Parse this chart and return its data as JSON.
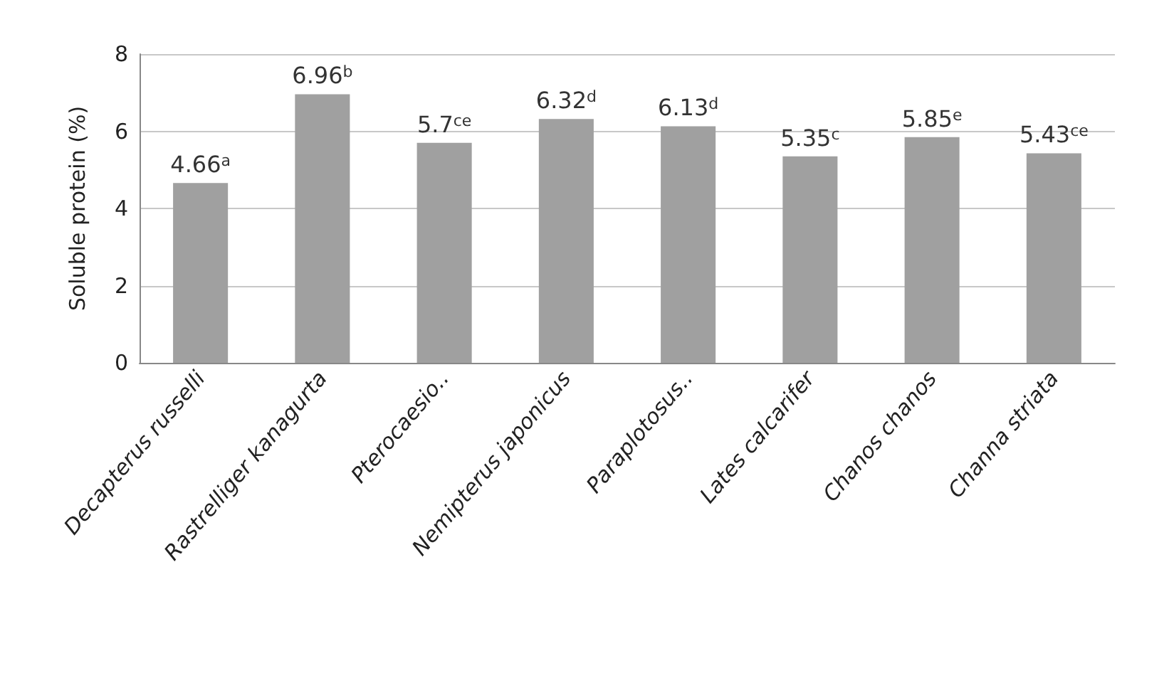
{
  "chart_data": {
    "type": "bar",
    "ylabel": "Soluble protein (%)",
    "categories": [
      "Decapterus russelli",
      "Rastrelliger kanagurta",
      "Pterocaesio..",
      "Nemipterus japonicus",
      "Paraplotosus..",
      "Lates calcarifer",
      "Chanos chanos",
      "Channa striata"
    ],
    "values": [
      4.66,
      6.96,
      5.7,
      6.32,
      6.13,
      5.35,
      5.85,
      5.43
    ],
    "value_labels": [
      "4.66$^{a}$",
      "6.96$^{b}$",
      "5.7$^{ce}$",
      "6.32$^{d}$",
      "6.13$^{d}$",
      "5.35$^{c}$",
      "5.85$^{e}$",
      "5.43$^{ce}$"
    ],
    "color": "#a0a0a0",
    "ylim": [
      0,
      8
    ],
    "yticks": [
      0,
      2,
      4,
      6,
      8
    ],
    "grid": "y"
  }
}
